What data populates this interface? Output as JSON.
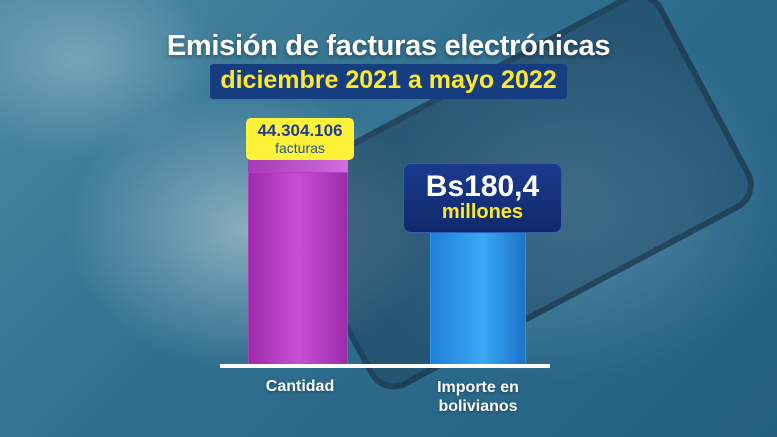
{
  "chart_data": {
    "type": "bar",
    "title": "Emisión de facturas electrónicas",
    "subtitle": "diciembre 2021 a mayo 2022",
    "categories": [
      "Cantidad",
      "Importe en bolivianos"
    ],
    "series": [
      {
        "values": [
          44304106,
          180.4
        ],
        "value_labels": [
          "44.304.106",
          "Bs180,4"
        ],
        "units": [
          "facturas",
          "millones"
        ]
      }
    ],
    "colors": [
      "#b63dc4",
      "#2f96ea"
    ],
    "value_label_colors": [
      "#fff33a",
      "#163d80"
    ]
  }
}
